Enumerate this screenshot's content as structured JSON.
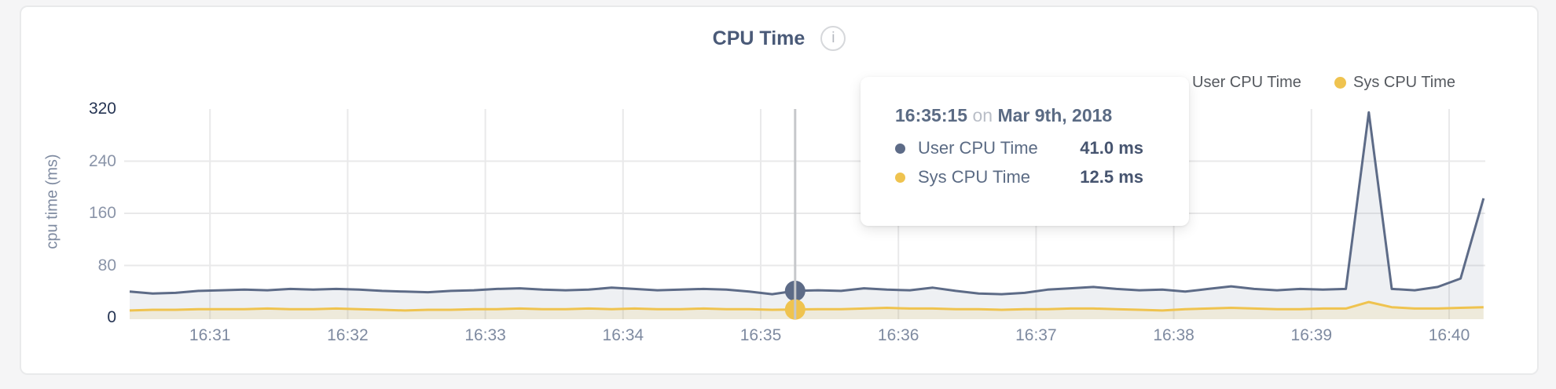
{
  "card": {
    "info_icon": "i"
  },
  "tooltip": {
    "time": "16:35:15",
    "preposition": "on",
    "date": "Mar 9th, 2018",
    "rows": [
      {
        "label": "User CPU Time",
        "value": "41.0 ms",
        "color": "#5d6b87"
      },
      {
        "label": "Sys CPU Time",
        "value": "12.5 ms",
        "color": "#efc34f"
      }
    ]
  },
  "colors": {
    "user_series": "#5d6b87",
    "sys_series": "#efc34f",
    "gridline": "#e9e9ea",
    "crosshair": "#c6c8cb",
    "tick_dark": "#253453",
    "tick_light": "#8a94a8",
    "axis_label": "#7e8aa0"
  },
  "chart_data": {
    "type": "area",
    "title": "CPU Time",
    "ylabel": "cpu time (ms)",
    "ylim": [
      0,
      320
    ],
    "y_ticks": [
      0,
      80,
      160,
      240,
      320
    ],
    "x_ticks": [
      "16:31",
      "16:32",
      "16:33",
      "16:34",
      "16:35",
      "16:36",
      "16:37",
      "16:38",
      "16:39",
      "16:40"
    ],
    "grid": true,
    "legend_position": "top-right",
    "x": [
      "16:30:25",
      "16:30:35",
      "16:30:45",
      "16:30:55",
      "16:31:05",
      "16:31:15",
      "16:31:25",
      "16:31:35",
      "16:31:45",
      "16:31:55",
      "16:32:05",
      "16:32:15",
      "16:32:25",
      "16:32:35",
      "16:32:45",
      "16:32:55",
      "16:33:05",
      "16:33:15",
      "16:33:25",
      "16:33:35",
      "16:33:45",
      "16:33:55",
      "16:34:05",
      "16:34:15",
      "16:34:25",
      "16:34:35",
      "16:34:45",
      "16:34:55",
      "16:35:05",
      "16:35:15",
      "16:35:25",
      "16:35:35",
      "16:35:45",
      "16:35:55",
      "16:36:05",
      "16:36:15",
      "16:36:25",
      "16:36:35",
      "16:36:45",
      "16:36:55",
      "16:37:05",
      "16:37:15",
      "16:37:25",
      "16:37:35",
      "16:37:45",
      "16:37:55",
      "16:38:05",
      "16:38:15",
      "16:38:25",
      "16:38:35",
      "16:38:45",
      "16:38:55",
      "16:39:05",
      "16:39:15",
      "16:39:25",
      "16:39:35",
      "16:39:45",
      "16:39:55",
      "16:40:05",
      "16:40:15"
    ],
    "series": [
      {
        "name": "User CPU Time",
        "color": "#5d6b87",
        "fill": "rgba(93,107,135,0.10)",
        "values": [
          40,
          37,
          38,
          41,
          42,
          43,
          42,
          44,
          43,
          44,
          43,
          41,
          40,
          39,
          41,
          42,
          44,
          45,
          43,
          42,
          43,
          46,
          44,
          42,
          43,
          44,
          43,
          40,
          36,
          41,
          42,
          41,
          45,
          43,
          42,
          46,
          41,
          37,
          36,
          38,
          43,
          45,
          47,
          44,
          42,
          43,
          40,
          44,
          48,
          44,
          42,
          44,
          43,
          44,
          315,
          44,
          42,
          47,
          60,
          183
        ]
      },
      {
        "name": "Sys CPU Time",
        "color": "#efc34f",
        "fill": "rgba(239,195,79,0.14)",
        "values": [
          11,
          12,
          12,
          13,
          13,
          13,
          14,
          13,
          13,
          14,
          13,
          12,
          11,
          12,
          12,
          13,
          13,
          14,
          13,
          13,
          14,
          13,
          14,
          13,
          13,
          14,
          13,
          13,
          12,
          12.5,
          13,
          13,
          14,
          15,
          14,
          14,
          13,
          13,
          12,
          13,
          13,
          14,
          14,
          13,
          12,
          11,
          13,
          14,
          15,
          14,
          13,
          13,
          14,
          14,
          24,
          16,
          14,
          14,
          15,
          16
        ]
      }
    ],
    "hover": {
      "time": "16:35:15",
      "values": [
        41.0,
        12.5
      ]
    }
  }
}
